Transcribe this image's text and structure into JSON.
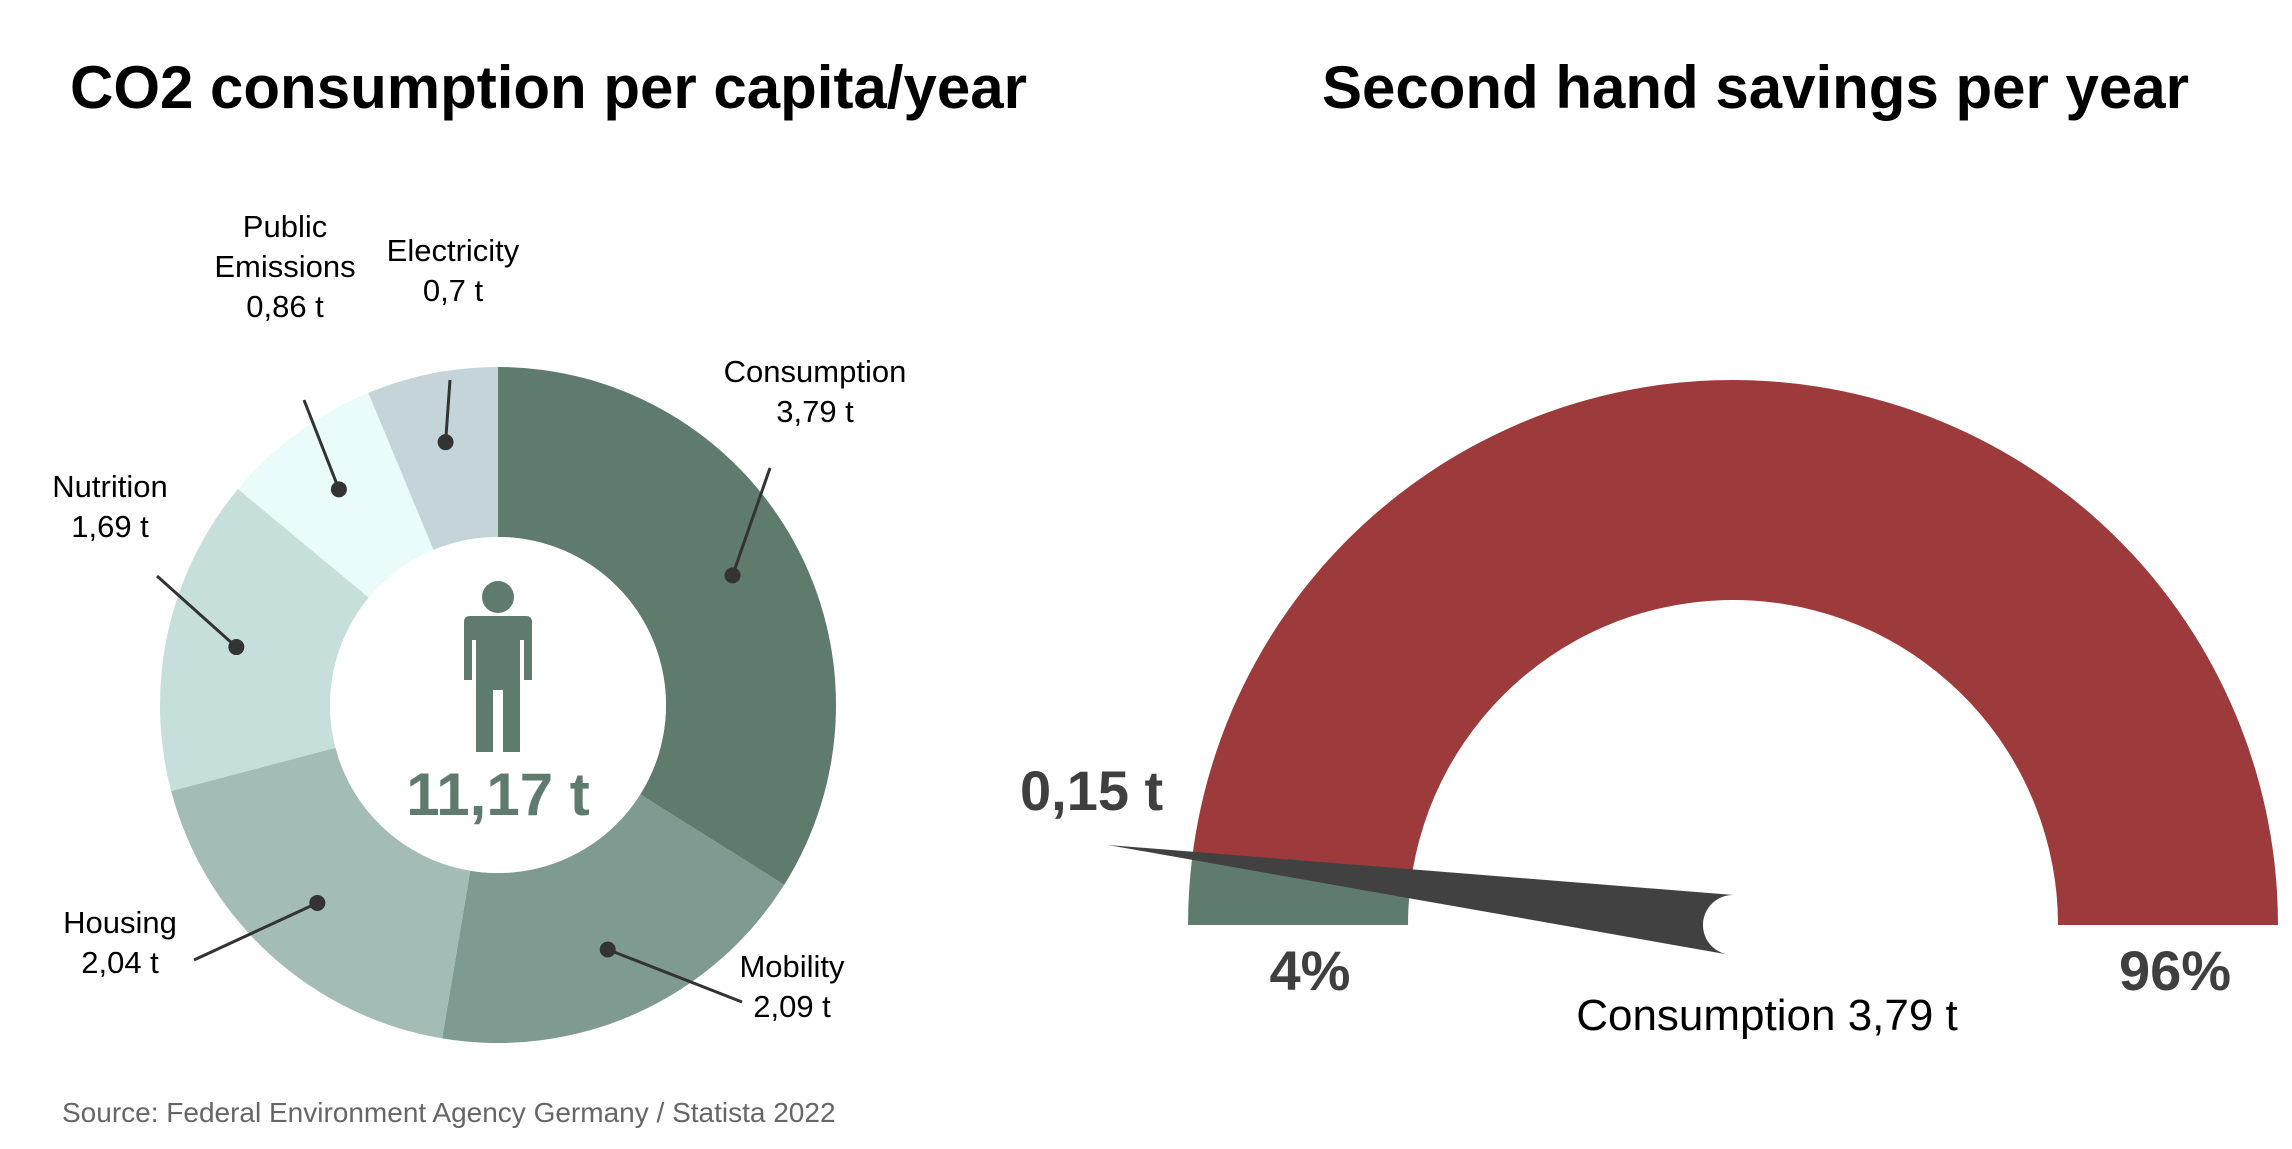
{
  "titles": {
    "left": "CO2 consumption per capita/year",
    "right": "Second hand savings per year"
  },
  "source": "Source: Federal Environment Agency Germany / Statista 2022",
  "icons": {
    "center": "person-icon"
  },
  "chart_data": [
    {
      "type": "pie",
      "variant": "donut",
      "title": "CO2 consumption per capita/year",
      "center_label": "11,17 t",
      "unit": "t",
      "slices": [
        {
          "label": [
            "Consumption",
            "3,79 t"
          ],
          "value": 3.79,
          "color": "#5e7b6d"
        },
        {
          "label": [
            "Mobility",
            "2,09 t"
          ],
          "value": 2.09,
          "color": "#7f9a90"
        },
        {
          "label": [
            "Housing",
            "2,04 t"
          ],
          "value": 2.04,
          "color": "#a3bcb6"
        },
        {
          "label": [
            "Nutrition",
            "1,69 t"
          ],
          "value": 1.69,
          "color": "#c7dfda"
        },
        {
          "label": [
            "Public",
            "Emissions",
            "0,86 t"
          ],
          "value": 0.86,
          "color": "#e9fbfb"
        },
        {
          "label": [
            "Electricity",
            "0,7 t"
          ],
          "value": 0.7,
          "color": "#c4d4d8"
        }
      ]
    },
    {
      "type": "gauge",
      "title": "Second hand savings per year",
      "value_label": "0,15 t",
      "caption": "Consumption 3,79 t",
      "range": [
        0,
        100
      ],
      "value_percent": 4,
      "segments": [
        {
          "label": "4%",
          "value": 4,
          "color": "#5e7b6d"
        },
        {
          "label": "96%",
          "value": 96,
          "color": "#9c3a3c"
        }
      ],
      "needle_color": "#414141"
    }
  ]
}
